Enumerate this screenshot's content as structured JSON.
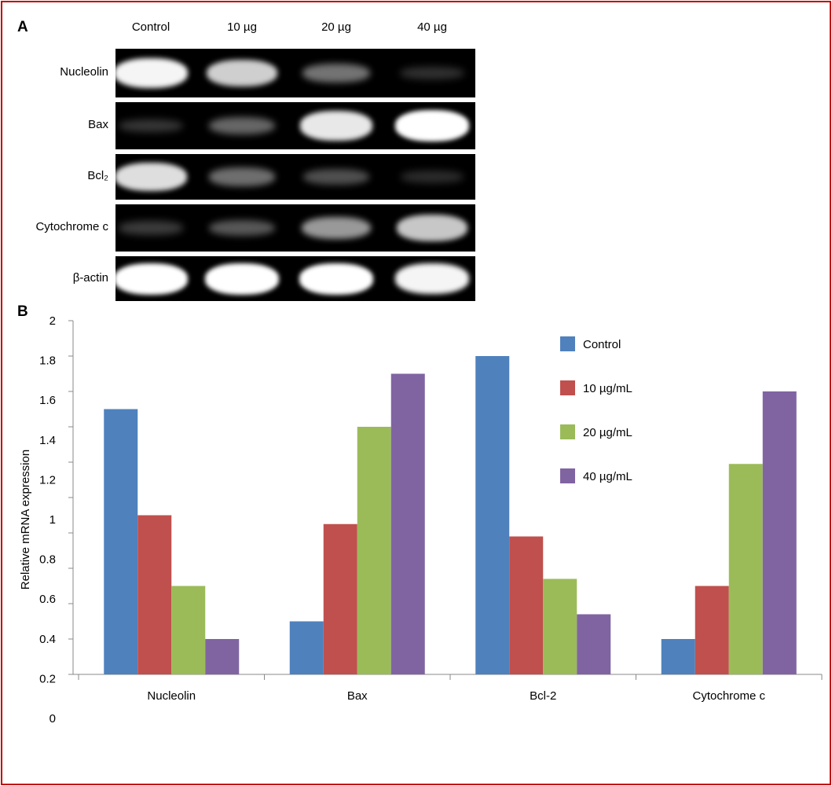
{
  "panel_a": {
    "label": "A",
    "lanes": [
      "Control",
      "10 µg",
      "20 µg",
      "40 µg"
    ],
    "rows": [
      {
        "name": "Nucleolin",
        "bands": [
          0.95,
          0.78,
          0.38,
          0.08
        ]
      },
      {
        "name": "Bax",
        "bands": [
          0.1,
          0.32,
          0.9,
          1.0
        ]
      },
      {
        "name": "Bcl₂",
        "bands": [
          0.85,
          0.35,
          0.22,
          0.06
        ]
      },
      {
        "name": "Cytochrome c",
        "bands": [
          0.12,
          0.25,
          0.55,
          0.75
        ]
      },
      {
        "name": "β-actin",
        "bands": [
          1.0,
          1.0,
          1.0,
          0.95
        ]
      }
    ]
  },
  "panel_b": {
    "label": "B"
  },
  "chart_data": {
    "type": "bar",
    "title": "",
    "xlabel": "",
    "ylabel": "Relative mRNA expression",
    "ylim": [
      0,
      2
    ],
    "yticks": [
      "2",
      "1.8",
      "1.6",
      "1.4",
      "1.2",
      "1",
      "0.8",
      "0.6",
      "0.4",
      "0.2",
      "0"
    ],
    "categories": [
      "Nucleolin",
      "Bax",
      "Bcl-2",
      "Cytochrome c"
    ],
    "series": [
      {
        "name": "Control",
        "color": "#4f81bd",
        "values": [
          1.5,
          0.3,
          1.8,
          0.2
        ]
      },
      {
        "name": "10 µg/mL",
        "color": "#c0504d",
        "values": [
          0.9,
          0.85,
          0.78,
          0.5
        ]
      },
      {
        "name": "20 µg/mL",
        "color": "#9bbb59",
        "values": [
          0.5,
          1.4,
          0.54,
          1.19
        ]
      },
      {
        "name": "40 µg/mL",
        "color": "#8064a2",
        "values": [
          0.2,
          1.7,
          0.34,
          1.6
        ]
      }
    ],
    "grid": false,
    "legend": "top-right"
  }
}
